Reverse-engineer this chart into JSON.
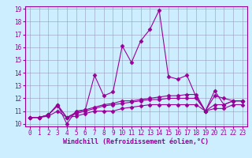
{
  "xlabel": "Windchill (Refroidissement éolien,°C)",
  "x_values": [
    0,
    1,
    2,
    3,
    4,
    5,
    6,
    7,
    8,
    9,
    10,
    11,
    12,
    13,
    14,
    15,
    16,
    17,
    18,
    19,
    20,
    21,
    22,
    23
  ],
  "series": [
    [
      10.5,
      10.5,
      10.7,
      11.5,
      10.0,
      11.0,
      11.1,
      13.8,
      12.2,
      12.5,
      16.1,
      14.8,
      16.5,
      17.4,
      18.9,
      13.7,
      13.5,
      13.8,
      12.1,
      11.0,
      12.6,
      11.5,
      11.8,
      11.8
    ],
    [
      10.5,
      10.5,
      10.7,
      11.5,
      10.5,
      10.9,
      11.1,
      11.3,
      11.5,
      11.6,
      11.8,
      11.8,
      11.9,
      12.0,
      12.1,
      12.2,
      12.2,
      12.3,
      12.3,
      11.0,
      12.2,
      12.0,
      11.8,
      11.8
    ],
    [
      10.5,
      10.5,
      10.7,
      11.4,
      10.5,
      10.8,
      11.0,
      11.2,
      11.4,
      11.5,
      11.6,
      11.7,
      11.8,
      11.9,
      11.9,
      12.0,
      12.0,
      12.0,
      12.0,
      11.0,
      11.5,
      11.5,
      11.8,
      11.8
    ],
    [
      10.5,
      10.5,
      10.6,
      11.0,
      10.5,
      10.6,
      10.8,
      11.0,
      11.0,
      11.0,
      11.2,
      11.3,
      11.4,
      11.5,
      11.5,
      11.5,
      11.5,
      11.5,
      11.5,
      11.0,
      11.2,
      11.2,
      11.5,
      11.5
    ]
  ],
  "ylim": [
    10,
    19
  ],
  "yticks": [
    10,
    11,
    12,
    13,
    14,
    15,
    16,
    17,
    18,
    19
  ],
  "xlim": [
    0,
    23
  ],
  "xticks": [
    0,
    1,
    2,
    3,
    4,
    5,
    6,
    7,
    8,
    9,
    10,
    11,
    12,
    13,
    14,
    15,
    16,
    17,
    18,
    19,
    20,
    21,
    22,
    23
  ],
  "bg_color": "#cceeff",
  "grid_color": "#9999bb",
  "line_color": "#990099",
  "marker": "D",
  "marker_size": 2.5,
  "linewidth": 0.8,
  "xlabel_fontsize": 6,
  "tick_fontsize": 5.5,
  "xlabel_color": "#990099",
  "tick_color": "#990099",
  "spine_color": "#990099"
}
